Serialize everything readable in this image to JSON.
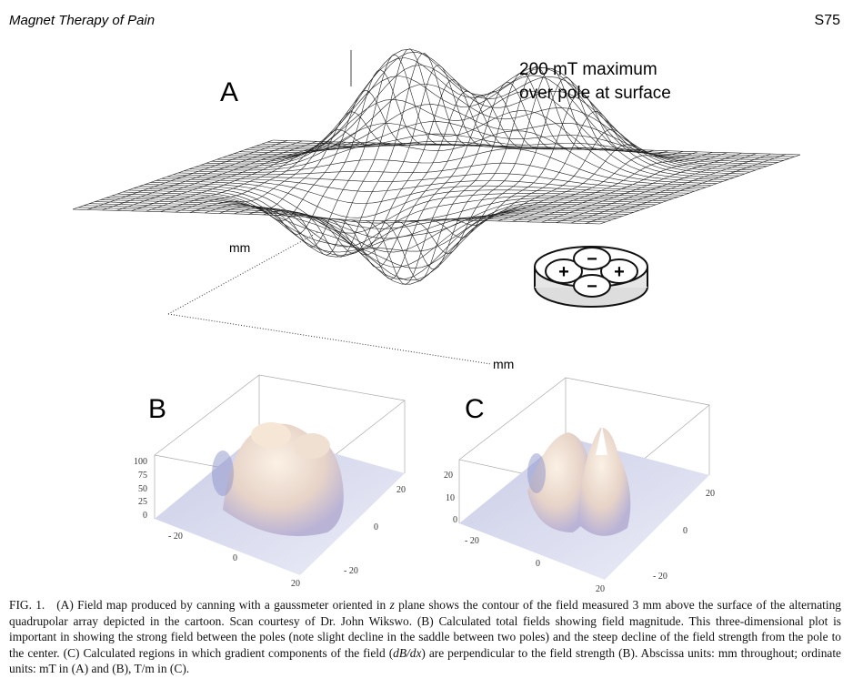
{
  "header": {
    "title": "Magnet Therapy of Pain",
    "page": "S75"
  },
  "figure": {
    "panel_a": {
      "label": "A",
      "annotation": [
        "200 mT maximum",
        "over pole at surface"
      ],
      "axis_labels": [
        "mm",
        "mm"
      ],
      "cartoon_signs": [
        "+",
        "−",
        "+",
        "−"
      ]
    },
    "panel_b": {
      "label": "B",
      "z_ticks": [
        "100",
        "75",
        "50",
        "25",
        "0"
      ],
      "x_ticks": [
        "- 20",
        "0",
        "20"
      ],
      "y_ticks": [
        "20",
        "0",
        "- 20"
      ]
    },
    "panel_c": {
      "label": "C",
      "z_ticks": [
        "20",
        "10",
        "0"
      ],
      "x_ticks": [
        "- 20",
        "0",
        "20"
      ],
      "y_ticks": [
        "20",
        "0",
        "- 20"
      ]
    }
  },
  "caption": {
    "label": "FIG. 1.",
    "parts": [
      "(A) Field map produced by canning with a gaussmeter oriented in ",
      "z",
      " plane shows the contour of the field measured 3 mm above the surface of the alternating quadrupolar array depicted in the cartoon. Scan courtesy of Dr. John Wikswo. (B) Calculated total fields showing field magnitude. This three-dimensional plot is important in showing the strong field between the poles (note slight decline in the saddle between two poles) and the steep decline of the field strength from the pole to the center. (C) Calculated regions in which gradient components of the field (",
      "dB/dx",
      ") are perpendicular to the field strength (B). Abscissa units: mm throughout; ordinate units: mT in (A) and (B), T/m in (C)."
    ]
  }
}
